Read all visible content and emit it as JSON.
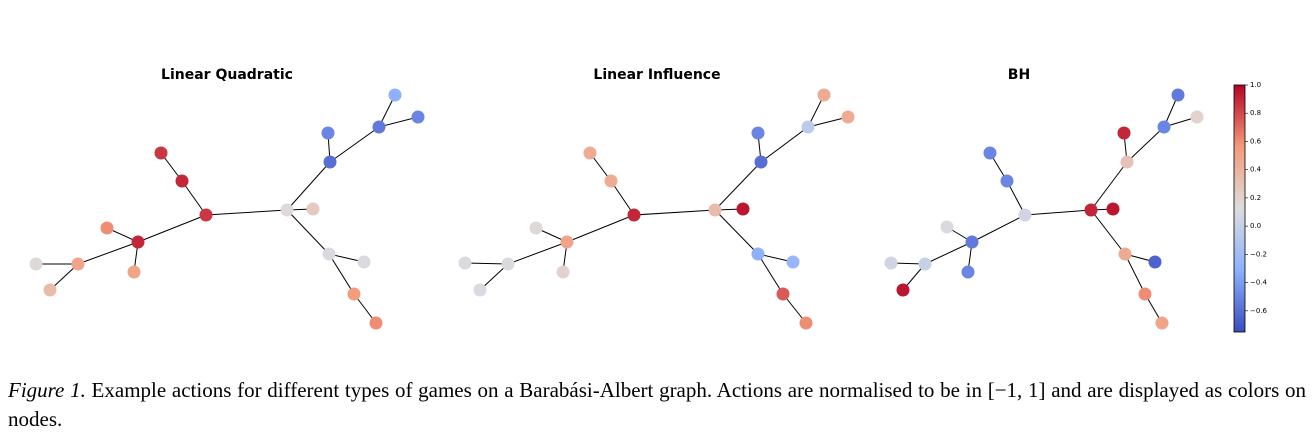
{
  "panels": [
    {
      "title": "Linear Quadratic",
      "node_values": [
        0.85,
        0.15,
        0.25,
        -0.6,
        -0.5,
        -0.55,
        -0.3,
        -0.5,
        0.9,
        0.85,
        0.9,
        0.6,
        0.5,
        0.5,
        0.15,
        0.35,
        0.1,
        0.1,
        0.55,
        0.6
      ]
    },
    {
      "title": "Linear Influence",
      "node_values": [
        0.9,
        0.35,
        0.95,
        -0.6,
        -0.5,
        -0.05,
        0.45,
        0.45,
        0.45,
        0.45,
        0.5,
        0.15,
        0.2,
        0.1,
        0.1,
        0.1,
        -0.3,
        -0.25,
        0.75,
        0.6
      ]
    },
    {
      "title": "BH",
      "node_values": [
        0.05,
        0.9,
        0.95,
        0.3,
        0.9,
        -0.5,
        -0.55,
        0.2,
        -0.5,
        -0.5,
        -0.55,
        0.1,
        -0.5,
        0.0,
        0.05,
        0.95,
        0.45,
        -0.65,
        0.6,
        0.5
      ]
    }
  ],
  "colorbar": {
    "clim": [
      -0.75,
      1.0
    ],
    "ticks": [
      {
        "value": 1,
        "label": "1.0"
      },
      0.8,
      0.6,
      0.4,
      0.2,
      {
        "value": 0,
        "label": "0.0"
      },
      {
        "value": -0.2,
        "label": "−0.2"
      },
      {
        "value": -0.4,
        "label": "−0.4"
      },
      {
        "value": -0.6,
        "label": "−0.6"
      }
    ]
  },
  "caption": {
    "label": "Figure 1.",
    "text": " Example actions for different types of games on a Barabási-Albert graph.  Actions are normalised to be in [−1, 1] and are displayed as colors on nodes."
  }
}
